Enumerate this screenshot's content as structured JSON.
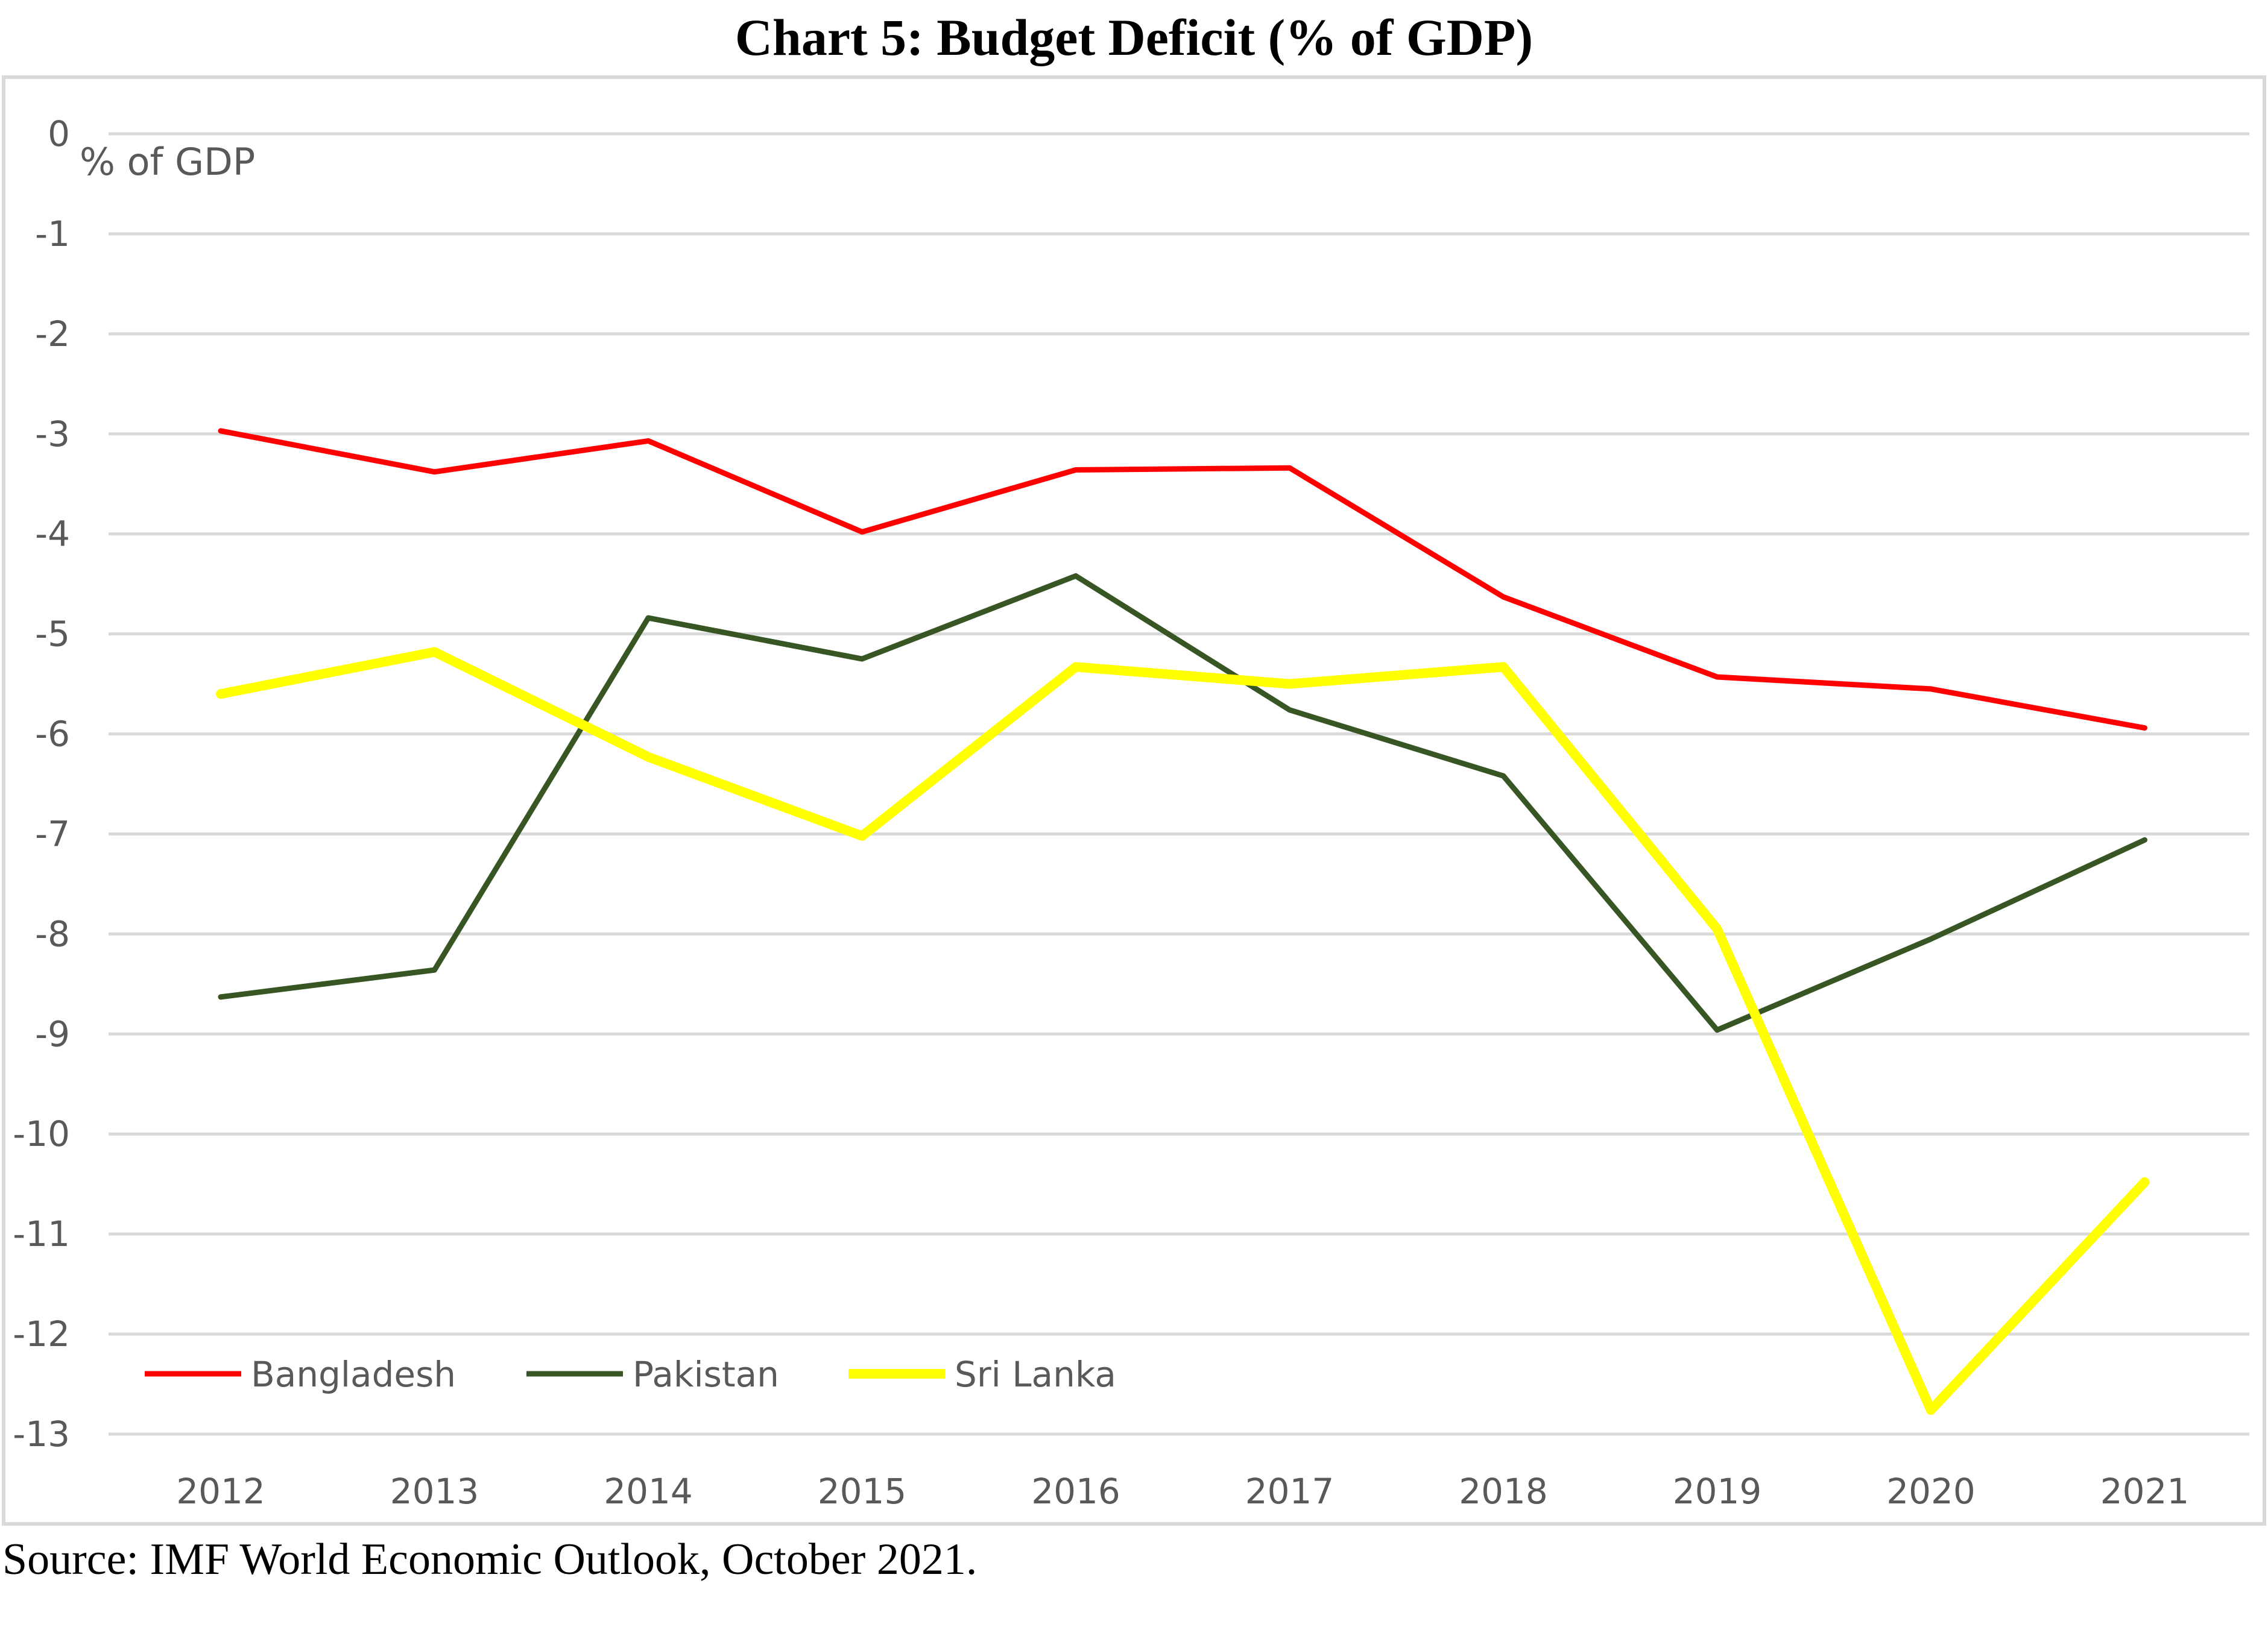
{
  "title": "Chart 5: Budget Deficit (% of GDP)",
  "source": "Source: IMF World Economic Outlook, October 2021.",
  "chart_data": {
    "type": "line",
    "unit_label": "% of GDP",
    "x": [
      "2012",
      "2013",
      "2014",
      "2015",
      "2016",
      "2017",
      "2018",
      "2019",
      "2020",
      "2021"
    ],
    "ylim": [
      -13,
      0
    ],
    "yticks": [
      0,
      -1,
      -2,
      -3,
      -4,
      -5,
      -6,
      -7,
      -8,
      -9,
      -10,
      -11,
      -12,
      -13
    ],
    "grid": true,
    "legend_position": "bottom-left",
    "series": [
      {
        "name": "Bangladesh",
        "color": "#ff0000",
        "values": [
          -2.97,
          -3.38,
          -3.07,
          -3.98,
          -3.36,
          -3.34,
          -4.63,
          -5.43,
          -5.55,
          -5.94
        ]
      },
      {
        "name": "Pakistan",
        "color": "#375623",
        "values": [
          -8.63,
          -8.36,
          -4.84,
          -5.25,
          -4.42,
          -5.76,
          -6.42,
          -8.96,
          -8.05,
          -7.06
        ]
      },
      {
        "name": "Sri Lanka",
        "color": "#ffff00",
        "values": [
          -5.6,
          -5.18,
          -6.23,
          -7.02,
          -5.33,
          -5.5,
          -5.33,
          -7.95,
          -12.76,
          -10.48
        ]
      }
    ]
  }
}
